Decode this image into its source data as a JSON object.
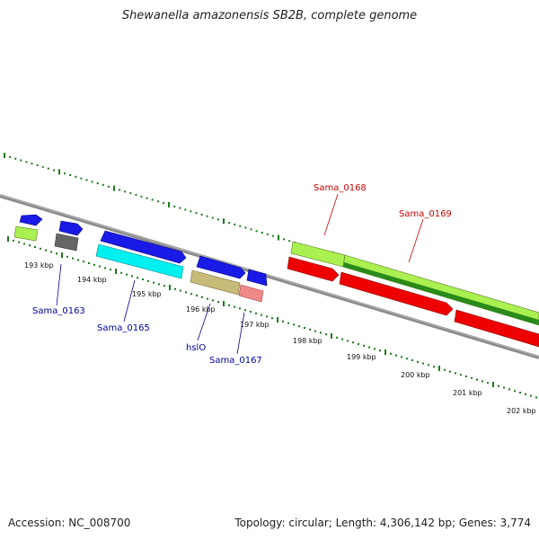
{
  "title": "Shewanella amazonensis SB2B, complete genome",
  "footer": {
    "accession": "Accession: NC_008700",
    "topology": "Topology: circular; Length: 4,306,142 bp; Genes: 3,774"
  },
  "colors": {
    "backbone": "#808080",
    "scale_ticks": "#1a7a1a",
    "forward_label": "#cc0000",
    "reverse_label": "#000099"
  },
  "scale_labels": [
    "193 kbp",
    "194 kbp",
    "195 kbp",
    "196 kbp",
    "197 kbp",
    "198 kbp",
    "199 kbp",
    "200 kbp",
    "201 kbp",
    "202 kbp"
  ],
  "gene_labels": {
    "sama_0163": "Sama_0163",
    "sama_0165": "Sama_0165",
    "hslo": "hslO",
    "sama_0167": "Sama_0167",
    "sama_0168": "Sama_0168",
    "sama_0169": "Sama_0169"
  }
}
